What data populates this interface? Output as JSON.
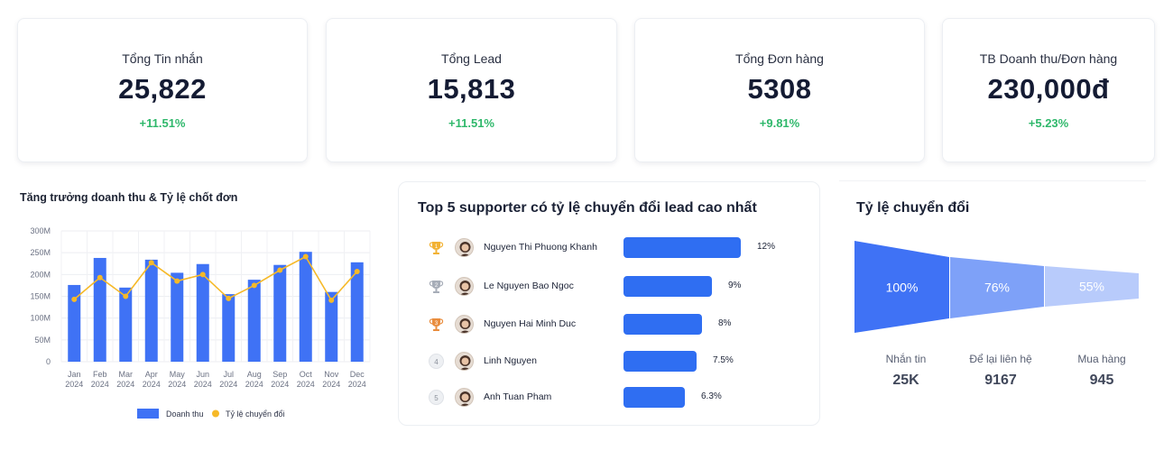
{
  "kpis": [
    {
      "title": "Tổng Tin nhắn",
      "value": "25,822",
      "delta": "+11.51%"
    },
    {
      "title": "Tổng Lead",
      "value": "15,813",
      "delta": "+11.51%"
    },
    {
      "title": "Tổng Đơn hàng",
      "value": "5308",
      "delta": "+9.81%"
    },
    {
      "title": "TB Doanh thu/Đơn hàng",
      "value": "230,000đ",
      "delta": "+5.23%"
    }
  ],
  "revenue_chart": {
    "title": "Tăng trưởng doanh thu & Tỷ lệ chốt đơn",
    "legend": {
      "bar": "Doanh thu",
      "line": "Tỷ lệ chuyển đổi"
    },
    "colors": {
      "bar": "#3f72f5",
      "line": "#f6b928"
    }
  },
  "top_supporters": {
    "title": "Top 5 supporter có tỷ lệ chuyển đổi lead cao nhất",
    "items": [
      {
        "rank": "1",
        "name": "Nguyen Thi Phuong Khanh",
        "pct_label": "12%",
        "value": 12,
        "badge": "gold-trophy-icon"
      },
      {
        "rank": "2",
        "name": "Le Nguyen Bao Ngoc",
        "pct_label": "9%",
        "value": 9,
        "badge": "silver-trophy-icon"
      },
      {
        "rank": "3",
        "name": "Nguyen Hai Minh Duc",
        "pct_label": "8%",
        "value": 8,
        "badge": "bronze-trophy-icon"
      },
      {
        "rank": "4",
        "name": "Linh Nguyen",
        "pct_label": "7.5%",
        "value": 7.5,
        "badge": ""
      },
      {
        "rank": "5",
        "name": "Anh Tuan Pham",
        "pct_label": "6.3%",
        "value": 6.3,
        "badge": ""
      }
    ]
  },
  "funnel": {
    "title": "Tỷ lệ chuyển đổi",
    "stages": [
      {
        "pct": "100%",
        "label": "Nhắn tin",
        "value": "25K",
        "color": "#3f72f5"
      },
      {
        "pct": "76%",
        "label": "Để lại liên hệ",
        "value": "9167",
        "color": "#7ea1f8"
      },
      {
        "pct": "55%",
        "label": "Mua hàng",
        "value": "945",
        "color": "#b8cbfb"
      }
    ]
  },
  "chart_data": [
    {
      "type": "bar",
      "title": "Tăng trưởng doanh thu & Tỷ lệ chốt đơn",
      "categories": [
        "Jan 2024",
        "Feb 2024",
        "Mar 2024",
        "Apr 2024",
        "May 2024",
        "Jun 2024",
        "Jul 2024",
        "Aug 2024",
        "Sep 2024",
        "Oct 2024",
        "Nov 2024",
        "Dec 2024"
      ],
      "x_tick_labels": [
        [
          "Jan",
          "2024"
        ],
        [
          "Feb",
          "2024"
        ],
        [
          "Mar",
          "2024"
        ],
        [
          "Apr",
          "2024"
        ],
        [
          "May",
          "2024"
        ],
        [
          "Jun",
          "2024"
        ],
        [
          "Jul",
          "2024"
        ],
        [
          "Aug",
          "2024"
        ],
        [
          "Sep",
          "2024"
        ],
        [
          "Oct",
          "2024"
        ],
        [
          "Nov",
          "2024"
        ],
        [
          "Dec",
          "2024"
        ]
      ],
      "y_ticks": [
        "300M",
        "250M",
        "200M",
        "150M",
        "100M",
        "50M",
        "0"
      ],
      "ylim": [
        0,
        300
      ],
      "grid": true,
      "legend_position": "bottom",
      "series": [
        {
          "name": "Doanh thu",
          "type": "bar",
          "values": [
            176,
            238,
            170,
            234,
            204,
            224,
            155,
            188,
            222,
            252,
            160,
            228
          ]
        },
        {
          "name": "Tỷ lệ chuyển đổi",
          "type": "line",
          "values": [
            143,
            193,
            150,
            227,
            185,
            200,
            145,
            175,
            210,
            241,
            141,
            207
          ]
        }
      ]
    },
    {
      "type": "bar",
      "title": "Top 5 supporter có tỷ lệ chuyển đổi lead cao nhất",
      "categories": [
        "Nguyen Thi Phuong Khanh",
        "Le Nguyen Bao Ngoc",
        "Nguyen Hai Minh Duc",
        "Linh Nguyen",
        "Anh Tuan Pham"
      ],
      "values": [
        12,
        9,
        8,
        7.5,
        6.3
      ]
    }
  ]
}
